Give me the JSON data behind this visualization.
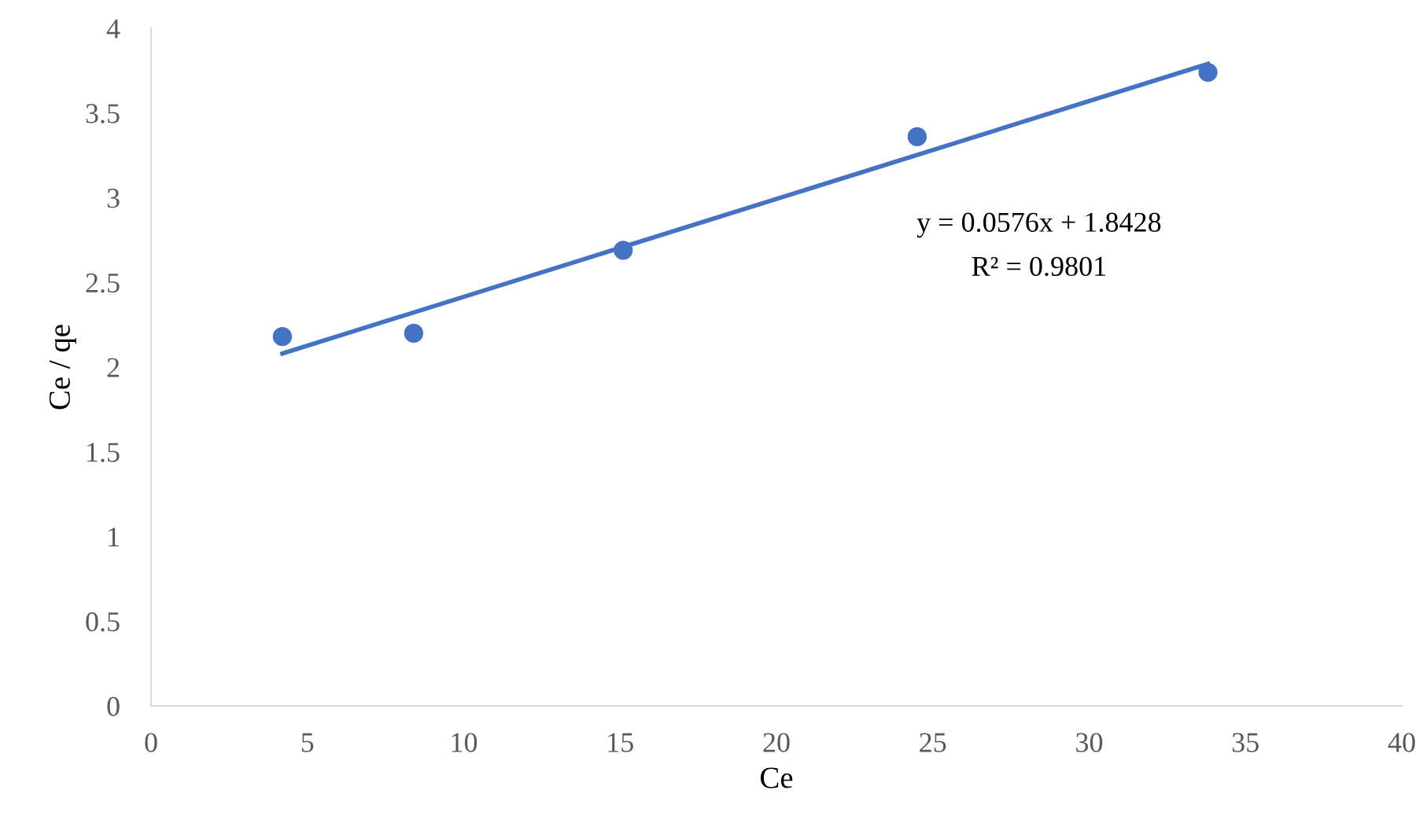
{
  "chart_data": {
    "type": "scatter",
    "xlabel": "Ce",
    "ylabel": "Ce / qe",
    "xlim": [
      0,
      40
    ],
    "xticks": [
      0,
      5,
      10,
      15,
      20,
      25,
      30,
      35,
      40
    ],
    "ylim": [
      0,
      4
    ],
    "yticks": [
      0,
      0.5,
      1,
      1.5,
      2,
      2.5,
      3,
      3.5,
      4
    ],
    "grid": false,
    "legend": false,
    "series": [
      {
        "marker": "circle",
        "color": "#4472c4",
        "x": [
          4.2,
          8.4,
          15.1,
          24.5,
          33.8
        ],
        "values": [
          2.18,
          2.2,
          2.69,
          3.36,
          3.74
        ]
      },
      {
        "type": "line",
        "color": "#4472c4",
        "x": [
          4.2,
          33.8
        ],
        "values": [
          2.08,
          3.79
        ],
        "line_style": "solid"
      }
    ],
    "annotations": [
      "y = 0.0576x + 1.8428",
      "R² = 0.9801"
    ]
  }
}
